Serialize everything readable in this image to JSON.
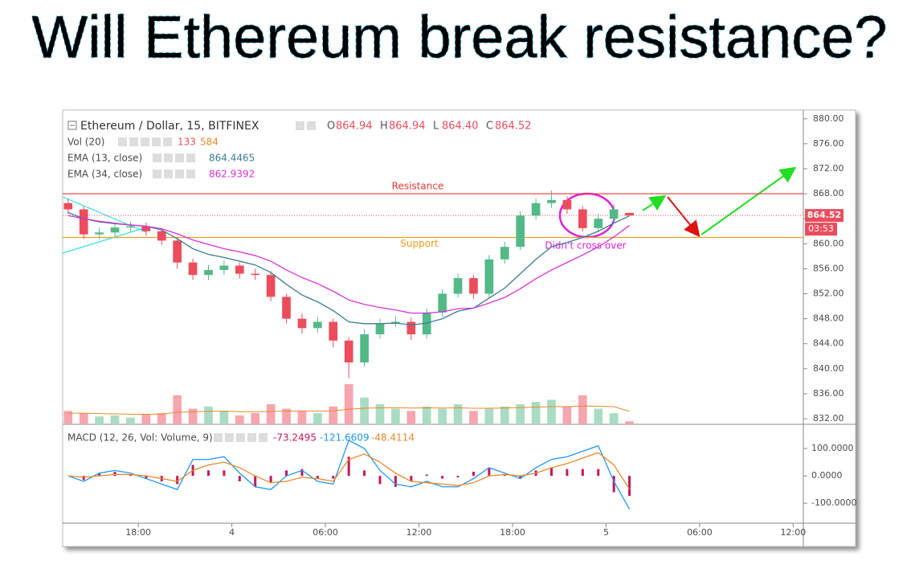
{
  "chart_data": {
    "type": "candlestick",
    "title": "Will Ethereum break resistance?",
    "symbol": "Ethereum / Dollar, 15, BITFINEX",
    "ohlc_legend": [
      {
        "label": "O",
        "value": "864.94"
      },
      {
        "label": "H",
        "value": "864.94"
      },
      {
        "label": "L",
        "value": "864.40"
      },
      {
        "label": "C",
        "value": "864.52"
      }
    ],
    "volume_legend": {
      "name": "Vol (20)",
      "values": [
        "133",
        "584"
      ]
    },
    "macd_legend": {
      "name": "MACD (12, 26, Vol: Volume, 9)",
      "values": [
        "-73.2495",
        "-121.6609",
        "-48.4114"
      ]
    },
    "x": [
      -4.5,
      -3.5,
      -2.5,
      -1.5,
      -0.5,
      0.5,
      1.5,
      2.5,
      3.5,
      4.5,
      5.5,
      6.5,
      7.5,
      8.5,
      9.5,
      10.5,
      11.5,
      12.5,
      13.5,
      14.5,
      15.5,
      16.5,
      17.5,
      18.5,
      19.5,
      20.5,
      21.5,
      22.5,
      23.5,
      24.5,
      25.5,
      26.5,
      27.5,
      28.5,
      29.5,
      30.5,
      31.5
    ],
    "open": [
      866.5,
      865.5,
      861.5,
      861.8,
      862.6,
      862.8,
      862.0,
      860.5,
      857.0,
      855.0,
      855.8,
      856.5,
      855.2,
      855.0,
      851.5,
      848.0,
      846.5,
      847.5,
      844.5,
      841.0,
      845.5,
      847.2,
      847.5,
      845.5,
      849.0,
      852.0,
      854.5,
      852.0,
      857.5,
      859.5,
      864.5,
      866.5,
      867.0,
      865.5,
      862.5,
      864.0,
      864.94
    ],
    "high": [
      867.2,
      866.0,
      862.6,
      863.3,
      863.5,
      863.4,
      862.5,
      861.0,
      857.6,
      856.6,
      857.3,
      857.0,
      856.0,
      855.6,
      852.0,
      848.8,
      848.3,
      848.0,
      845.0,
      846.3,
      848.0,
      848.4,
      848.2,
      849.6,
      852.7,
      855.2,
      855.0,
      858.2,
      860.3,
      865.2,
      867.2,
      868.5,
      867.6,
      866.0,
      864.8,
      866.3,
      864.94
    ],
    "low": [
      864.8,
      860.8,
      860.7,
      861.0,
      862.0,
      861.3,
      859.8,
      856.0,
      854.2,
      854.2,
      855.0,
      854.4,
      854.2,
      850.8,
      847.2,
      845.6,
      845.8,
      843.4,
      838.5,
      840.3,
      844.8,
      846.7,
      844.6,
      844.8,
      848.3,
      851.4,
      851.2,
      851.3,
      856.8,
      859.0,
      863.8,
      865.8,
      864.8,
      862.0,
      861.8,
      863.4,
      864.4
    ],
    "close": [
      865.5,
      861.5,
      861.8,
      862.6,
      862.8,
      862.0,
      860.5,
      857.0,
      855.0,
      855.8,
      856.5,
      855.2,
      855.0,
      851.5,
      848.0,
      846.5,
      847.5,
      844.5,
      841.0,
      845.5,
      847.2,
      847.5,
      845.5,
      849.0,
      852.0,
      854.5,
      852.0,
      857.5,
      859.5,
      864.5,
      866.5,
      867.0,
      865.5,
      862.5,
      864.0,
      865.5,
      864.52
    ],
    "up_color": "#53b987",
    "down_color": "#eb4d5c",
    "series": [
      {
        "name": "EMA (13, close)",
        "value_label": "864.4465",
        "color": "#3b7d8f",
        "values": [
          865.0,
          864.0,
          863.5,
          863.2,
          863.0,
          862.8,
          862.2,
          860.8,
          859.2,
          858.3,
          857.8,
          857.2,
          856.6,
          855.4,
          853.5,
          851.8,
          850.7,
          849.3,
          847.5,
          847.2,
          847.2,
          847.3,
          847.0,
          847.3,
          848.0,
          849.2,
          849.7,
          851.3,
          852.9,
          855.2,
          857.5,
          859.5,
          860.2,
          861.0,
          862.0,
          863.3,
          864.4465
        ]
      },
      {
        "name": "EMA (34, close)",
        "value_label": "862.9392",
        "color": "#d633d6",
        "values": [
          864.5,
          864.0,
          863.6,
          863.3,
          863.0,
          862.8,
          862.4,
          861.6,
          860.6,
          859.9,
          859.2,
          858.7,
          858.1,
          857.2,
          855.8,
          854.6,
          853.6,
          852.4,
          851.0,
          850.3,
          849.8,
          849.4,
          848.9,
          848.9,
          849.1,
          849.6,
          849.7,
          850.5,
          851.4,
          852.8,
          854.4,
          855.8,
          857.0,
          858.2,
          859.5,
          861.1,
          862.9392
        ]
      }
    ],
    "volume": [
      600,
      500,
      350,
      400,
      300,
      450,
      500,
      1300,
      700,
      800,
      600,
      400,
      500,
      900,
      700,
      600,
      500,
      800,
      1800,
      1200,
      900,
      700,
      600,
      800,
      700,
      900,
      600,
      700,
      800,
      900,
      1000,
      1100,
      800,
      1300,
      700,
      500,
      133
    ],
    "volume_ma": [
      500,
      500,
      480,
      470,
      450,
      450,
      460,
      540,
      560,
      580,
      590,
      570,
      560,
      580,
      590,
      600,
      590,
      600,
      680,
      720,
      740,
      740,
      730,
      740,
      730,
      740,
      720,
      720,
      730,
      750,
      770,
      790,
      790,
      820,
      810,
      790,
      584
    ],
    "macd": {
      "histogram": [
        0,
        -15,
        10,
        15,
        5,
        -10,
        -20,
        -30,
        40,
        20,
        20,
        -20,
        -40,
        -25,
        20,
        25,
        -10,
        -10,
        70,
        20,
        -30,
        -40,
        -20,
        5,
        -10,
        -5,
        15,
        30,
        5,
        -10,
        20,
        30,
        25,
        25,
        25,
        -60,
        -73.2495
      ],
      "line": [
        0,
        -20,
        10,
        20,
        10,
        -10,
        -30,
        -50,
        60,
        60,
        70,
        10,
        -40,
        -50,
        0,
        20,
        -20,
        -30,
        130,
        100,
        20,
        -30,
        -40,
        -20,
        -40,
        -40,
        -10,
        30,
        10,
        -10,
        30,
        60,
        70,
        90,
        110,
        -20,
        -121.6609
      ],
      "signal": [
        0,
        -5,
        0,
        5,
        5,
        0,
        -10,
        -20,
        20,
        40,
        50,
        30,
        0,
        -25,
        -20,
        -5,
        -10,
        -20,
        60,
        80,
        50,
        10,
        -20,
        -25,
        -30,
        -35,
        -25,
        0,
        5,
        0,
        10,
        30,
        45,
        65,
        85,
        40,
        -48.4114
      ],
      "ylim": [
        -170,
        168
      ],
      "yticks": [
        {
          "value": 100,
          "label": "100.0000"
        },
        {
          "value": 0,
          "label": "0.0000"
        },
        {
          "value": -100,
          "label": "-100.0000"
        }
      ]
    },
    "ylim": [
      831.1,
      881.0
    ],
    "yticks": [
      {
        "value": 832,
        "label": "832.00"
      },
      {
        "value": 836,
        "label": "836.00"
      },
      {
        "value": 840,
        "label": "840.00"
      },
      {
        "value": 844,
        "label": "844.00"
      },
      {
        "value": 848,
        "label": "848.00"
      },
      {
        "value": 852,
        "label": "852.00"
      },
      {
        "value": 856,
        "label": "856.00"
      },
      {
        "value": 860,
        "label": "860.00"
      },
      {
        "value": 864,
        "label": "864.00"
      },
      {
        "value": 868,
        "label": "868.00"
      },
      {
        "value": 872,
        "label": "872.00"
      },
      {
        "value": 876,
        "label": "876.00"
      },
      {
        "value": 880,
        "label": "880.00"
      }
    ],
    "xlim": [
      -4.85,
      42.65
    ],
    "xticks": [
      {
        "value": 0,
        "label": "18:00"
      },
      {
        "value": 6,
        "label": "4"
      },
      {
        "value": 12,
        "label": "06:00"
      },
      {
        "value": 18,
        "label": "12:00"
      },
      {
        "value": 24,
        "label": "18:00"
      },
      {
        "value": 30,
        "label": "5"
      },
      {
        "value": 36,
        "label": "06:00"
      },
      {
        "value": 42,
        "label": "12:00"
      }
    ],
    "last_price": 864.52,
    "last_price_label": "864.52",
    "countdown": "03:53",
    "resistance": {
      "label": "Resistance",
      "value": 868
    },
    "support": {
      "label": "Support",
      "value": 861
    },
    "annotation": "Didn't cross over"
  }
}
